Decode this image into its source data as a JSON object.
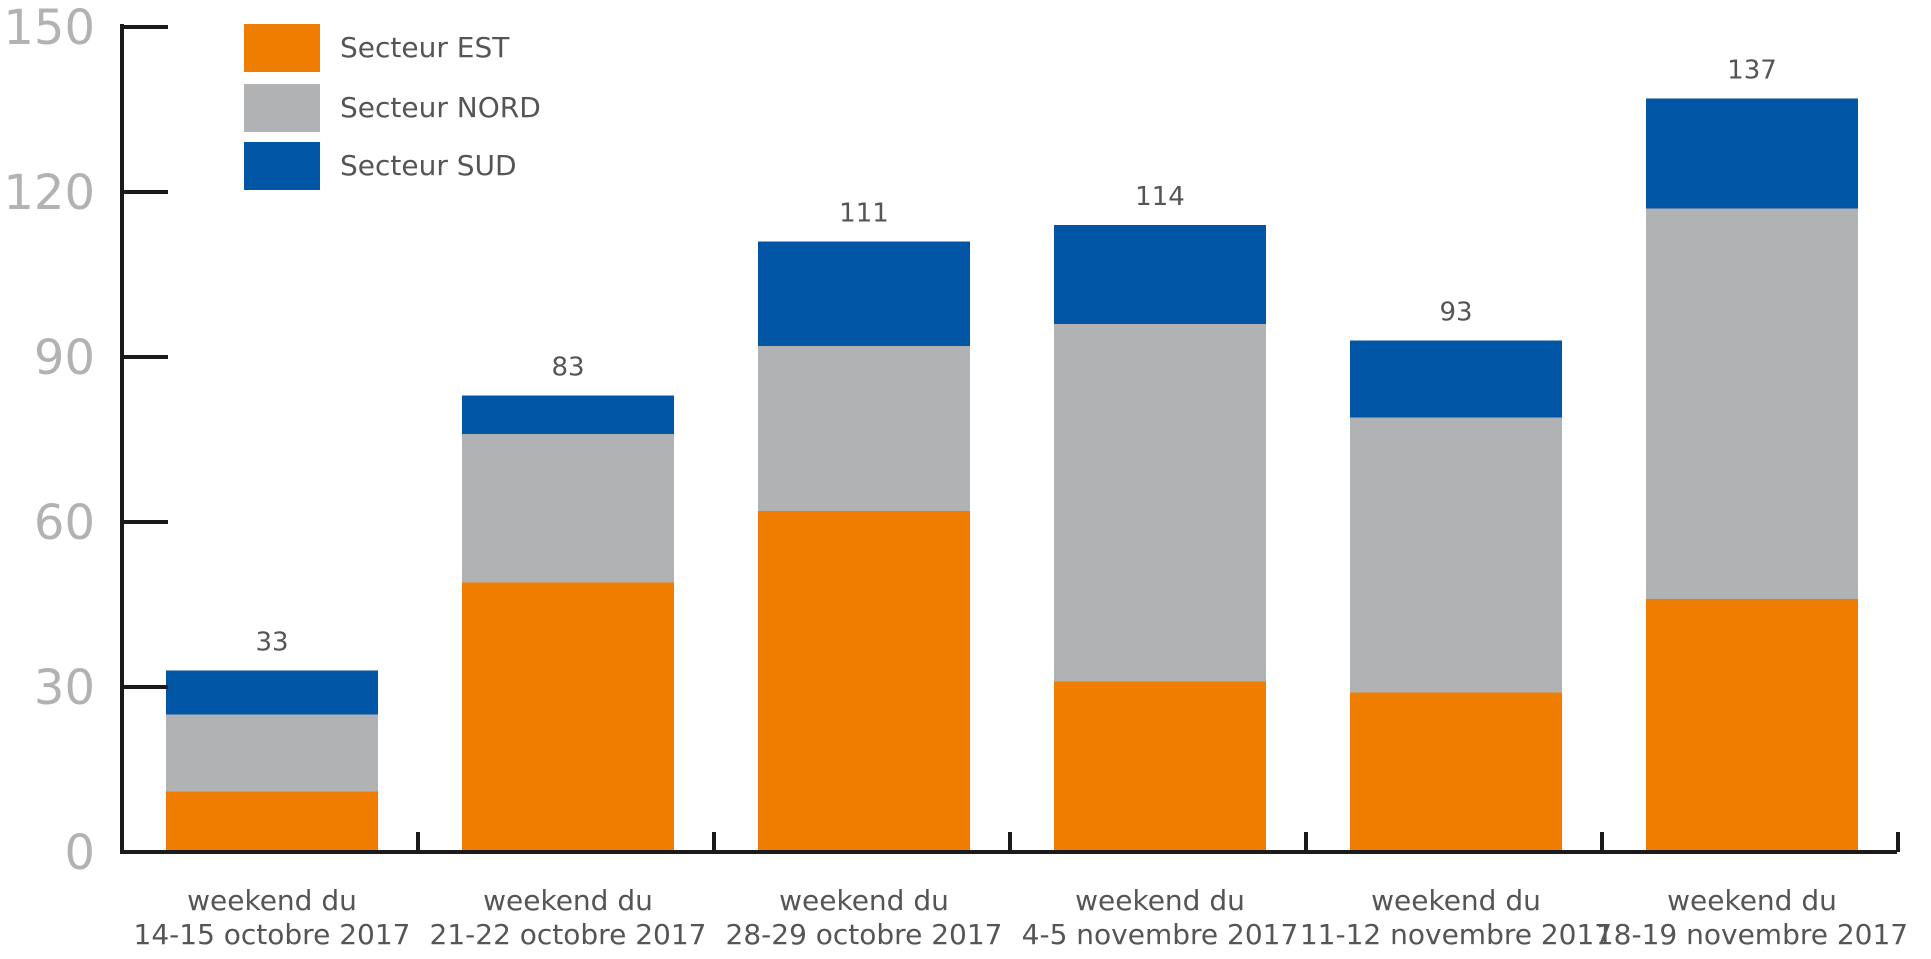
{
  "chart_data": {
    "type": "bar",
    "stacked": true,
    "title": "",
    "xlabel": "",
    "ylabel": "",
    "ylim": [
      0,
      150
    ],
    "yticks": [
      0,
      30,
      60,
      90,
      120,
      150
    ],
    "categories": [
      [
        "weekend du",
        "14-15 octobre 2017"
      ],
      [
        "weekend du",
        "21-22 octobre 2017"
      ],
      [
        "weekend du",
        "28-29 octobre 2017"
      ],
      [
        "weekend du",
        "4-5 novembre 2017"
      ],
      [
        "weekend du",
        "11-12 novembre 2017"
      ],
      [
        "weekend du",
        "18-19 novembre 2017"
      ]
    ],
    "series": [
      {
        "name": "Secteur EST",
        "color": "#ef7d00",
        "values": [
          11,
          49,
          62,
          31,
          29,
          46
        ]
      },
      {
        "name": "Secteur NORD",
        "color": "#b1b2b4",
        "values": [
          14,
          27,
          30,
          65,
          50,
          71
        ]
      },
      {
        "name": "Secteur SUD",
        "color": "#0055a4",
        "values": [
          8,
          7,
          19,
          18,
          14,
          20
        ]
      }
    ],
    "totals": [
      "33",
      "83",
      "111",
      "114",
      "93",
      "137"
    ],
    "legend_position": "top-left",
    "grid": false
  }
}
